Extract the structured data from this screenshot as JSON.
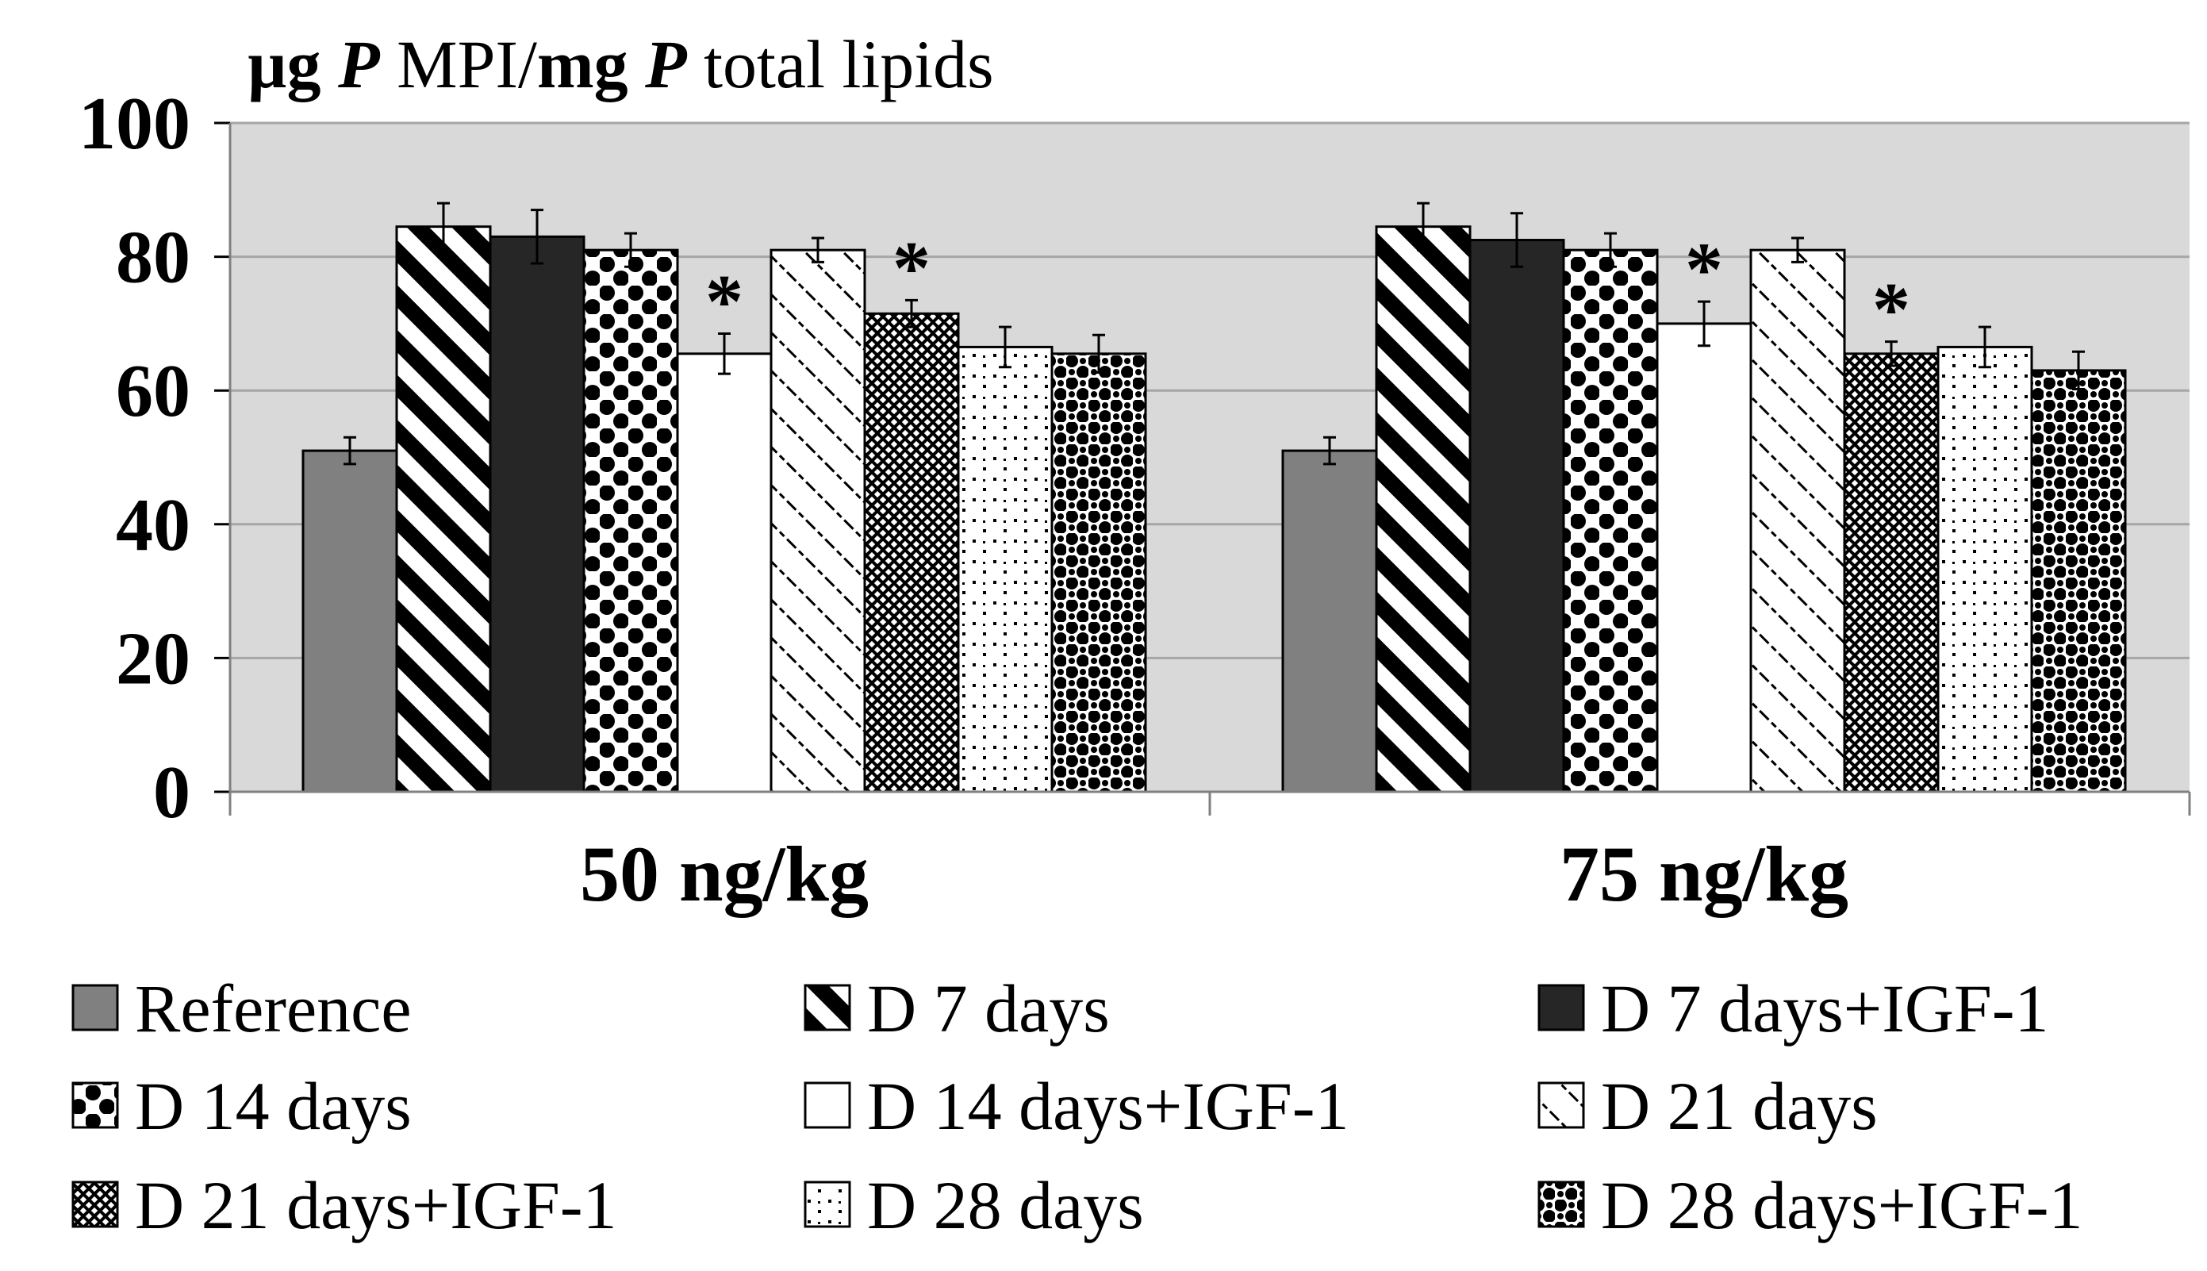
{
  "chart_data": {
    "type": "bar",
    "title_parts": [
      {
        "text": "µg ",
        "bold": true,
        "italic": false
      },
      {
        "text": "P",
        "bold": true,
        "italic": true
      },
      {
        "text": " MPI/",
        "bold": false,
        "italic": false
      },
      {
        "text": "mg ",
        "bold": true,
        "italic": false
      },
      {
        "text": "P",
        "bold": true,
        "italic": true
      },
      {
        "text": " total lipids",
        "bold": false,
        "italic": false
      }
    ],
    "categories": [
      "50 ng/kg",
      "75 ng/kg"
    ],
    "ylim": [
      0,
      100
    ],
    "yticks": [
      0,
      20,
      40,
      60,
      80,
      100
    ],
    "grid": true,
    "legend_position": "bottom",
    "significance_marker": "*",
    "series": [
      {
        "name": "Reference",
        "pattern": "gray",
        "values": [
          51,
          51
        ],
        "errors": [
          2,
          2
        ],
        "significant": [
          false,
          false
        ]
      },
      {
        "name": "D 7 days",
        "pattern": "diag",
        "values": [
          84.5,
          84.5
        ],
        "errors": [
          3.5,
          3.5
        ],
        "significant": [
          false,
          false
        ]
      },
      {
        "name": "D 7 days+IGF-1",
        "pattern": "dark",
        "values": [
          83,
          82.5
        ],
        "errors": [
          4,
          4
        ],
        "significant": [
          false,
          false
        ]
      },
      {
        "name": "D 14 days",
        "pattern": "dots",
        "values": [
          81,
          81
        ],
        "errors": [
          2.5,
          2.5
        ],
        "significant": [
          false,
          false
        ]
      },
      {
        "name": "D 14 days+IGF-1",
        "pattern": "white",
        "values": [
          65.5,
          70
        ],
        "errors": [
          3,
          3.3
        ],
        "significant": [
          true,
          true
        ]
      },
      {
        "name": "D 21 days",
        "pattern": "lattice",
        "values": [
          81,
          81
        ],
        "errors": [
          1.8,
          1.8
        ],
        "significant": [
          false,
          false
        ]
      },
      {
        "name": "D 21 days+IGF-1",
        "pattern": "cross",
        "values": [
          71.5,
          65.5
        ],
        "errors": [
          2,
          1.8
        ],
        "significant": [
          true,
          true
        ]
      },
      {
        "name": "D 28 days",
        "pattern": "sparse",
        "values": [
          66.5,
          66.5
        ],
        "errors": [
          3,
          3
        ],
        "significant": [
          false,
          false
        ]
      },
      {
        "name": "D 28 days+IGF-1",
        "pattern": "checker",
        "values": [
          65.5,
          63
        ],
        "errors": [
          2.8,
          2.8
        ],
        "significant": [
          false,
          false
        ]
      }
    ]
  },
  "colors": {
    "plot_background": "#d9d9d9",
    "gridline": "#a6a6a6",
    "reference_fill": "#808080",
    "dark_fill": "#262626",
    "outline": "#000000"
  }
}
